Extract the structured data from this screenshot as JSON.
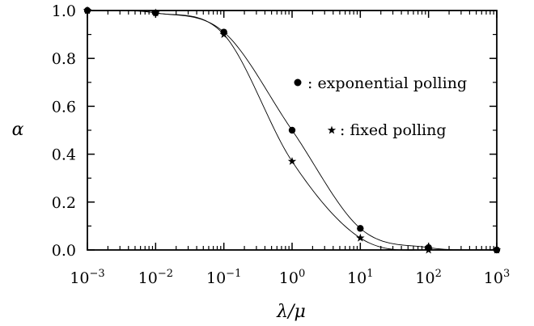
{
  "chart_data": {
    "type": "scatter",
    "x_scale": "log",
    "xlim": [
      0.001,
      1000
    ],
    "ylim": [
      0.0,
      1.0
    ],
    "xlabel": "λ/μ",
    "ylabel": "α",
    "x_ticks": [
      {
        "value": 0.001,
        "base": "10",
        "exp": "−3"
      },
      {
        "value": 0.01,
        "base": "10",
        "exp": "−2"
      },
      {
        "value": 0.1,
        "base": "10",
        "exp": "−1"
      },
      {
        "value": 1,
        "base": "10",
        "exp": "0"
      },
      {
        "value": 10,
        "base": "10",
        "exp": "1"
      },
      {
        "value": 100,
        "base": "10",
        "exp": "2"
      },
      {
        "value": 1000,
        "base": "10",
        "exp": "3"
      }
    ],
    "y_ticks": [
      {
        "value": 0.0,
        "label": "0.0"
      },
      {
        "value": 0.2,
        "label": "0.2"
      },
      {
        "value": 0.4,
        "label": "0.4"
      },
      {
        "value": 0.6,
        "label": "0.6"
      },
      {
        "value": 0.8,
        "label": "0.8"
      },
      {
        "value": 1.0,
        "label": "1.0"
      }
    ],
    "series": [
      {
        "name": ": exponential polling",
        "marker": "circle",
        "x": [
          0.001,
          0.01,
          0.1,
          1,
          10,
          100,
          1000
        ],
        "y": [
          1.0,
          0.99,
          0.91,
          0.5,
          0.09,
          0.01,
          0.0
        ]
      },
      {
        "name": ": fixed polling",
        "marker": "star",
        "x": [
          0.001,
          0.01,
          0.1,
          1,
          10,
          100,
          1000
        ],
        "y": [
          1.0,
          0.99,
          0.9,
          0.37,
          0.05,
          0.0,
          0.0
        ]
      }
    ],
    "legend_position": "right",
    "grid": false
  }
}
